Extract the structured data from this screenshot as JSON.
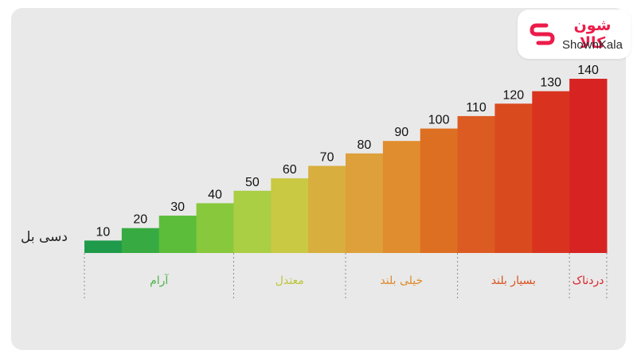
{
  "logo": {
    "text_fa": "شون کالا",
    "text_en": "ShownKala",
    "icon": "shownkala-logo-icon",
    "color": "#ec1c4a"
  },
  "chart_data": {
    "type": "bar",
    "ylabel": "دسی بل",
    "x": [
      10,
      20,
      30,
      40,
      50,
      60,
      70,
      80,
      90,
      100,
      110,
      120,
      130,
      140
    ],
    "values": [
      10,
      20,
      30,
      40,
      50,
      60,
      70,
      80,
      90,
      100,
      110,
      120,
      130,
      140
    ],
    "colors": [
      "#1f9a4a",
      "#37ab42",
      "#5bbd3a",
      "#88c83c",
      "#aace44",
      "#c9c943",
      "#d8ae3e",
      "#dea03a",
      "#e08d2f",
      "#dd6f22",
      "#dc5b22",
      "#da4a1f",
      "#d9331f",
      "#d82323"
    ],
    "categories": [
      {
        "label": "آرام",
        "color": "#4cb24a",
        "from": 10,
        "to": 40
      },
      {
        "label": "معتدل",
        "color": "#bcc53a",
        "from": 50,
        "to": 70
      },
      {
        "label": "خیلی بلند",
        "color": "#de8a2a",
        "from": 80,
        "to": 100
      },
      {
        "label": "بسیار بلند",
        "color": "#d9541f",
        "from": 110,
        "to": 130
      },
      {
        "label": "دردناک",
        "color": "#d8232a",
        "from": 140,
        "to": 140
      }
    ]
  }
}
